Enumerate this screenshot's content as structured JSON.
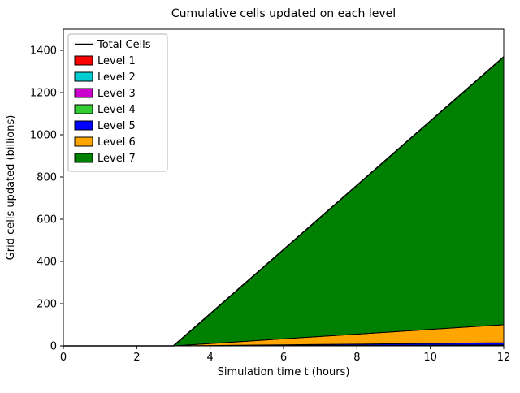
{
  "chart_data": {
    "type": "area",
    "title": "Cumulative cells updated on each level",
    "xlabel": "Simulation time t (hours)",
    "ylabel": "Grid cells updated (billions)",
    "xlim": [
      0,
      12
    ],
    "ylim": [
      0,
      1500
    ],
    "xticks": [
      0,
      2,
      4,
      6,
      8,
      10,
      12
    ],
    "yticks": [
      0,
      200,
      400,
      600,
      800,
      1000,
      1200,
      1400
    ],
    "grid": false,
    "legend_position": "upper left",
    "x": [
      0,
      1,
      2,
      3,
      4,
      5,
      6,
      7,
      8,
      9,
      10,
      11,
      12
    ],
    "series": [
      {
        "name": "Level 1",
        "color": "#ff0000",
        "values": [
          0,
          0,
          0,
          0,
          0.02,
          0.04,
          0.06,
          0.08,
          0.1,
          0.12,
          0.14,
          0.16,
          0.18
        ]
      },
      {
        "name": "Level 2",
        "color": "#00ced1",
        "values": [
          0,
          0,
          0,
          0,
          0.05,
          0.1,
          0.15,
          0.2,
          0.25,
          0.3,
          0.35,
          0.4,
          0.45
        ]
      },
      {
        "name": "Level 3",
        "color": "#cc00cc",
        "values": [
          0,
          0,
          0,
          0,
          0.1,
          0.2,
          0.3,
          0.4,
          0.5,
          0.6,
          0.7,
          0.8,
          0.9
        ]
      },
      {
        "name": "Level 4",
        "color": "#32cd32",
        "values": [
          0,
          0,
          0,
          0,
          0.3,
          0.6,
          0.9,
          1.2,
          1.5,
          1.8,
          2.1,
          2.4,
          2.7
        ]
      },
      {
        "name": "Level 5",
        "color": "#0000ff",
        "values": [
          0,
          0,
          0,
          0,
          1.2,
          2.4,
          3.6,
          4.8,
          6.0,
          7.2,
          8.4,
          9.6,
          10.8
        ]
      },
      {
        "name": "Level 6",
        "color": "#ffa500",
        "values": [
          0,
          0,
          0,
          0,
          9.5,
          19,
          28.5,
          38,
          47.5,
          57,
          66.5,
          76,
          85.5
        ]
      },
      {
        "name": "Level 7",
        "color": "#008000",
        "values": [
          0,
          0,
          0,
          0,
          141,
          282,
          423,
          564,
          705,
          846,
          987,
          1128,
          1269
        ]
      }
    ],
    "total": {
      "label": "Total Cells",
      "color": "#000000"
    }
  }
}
